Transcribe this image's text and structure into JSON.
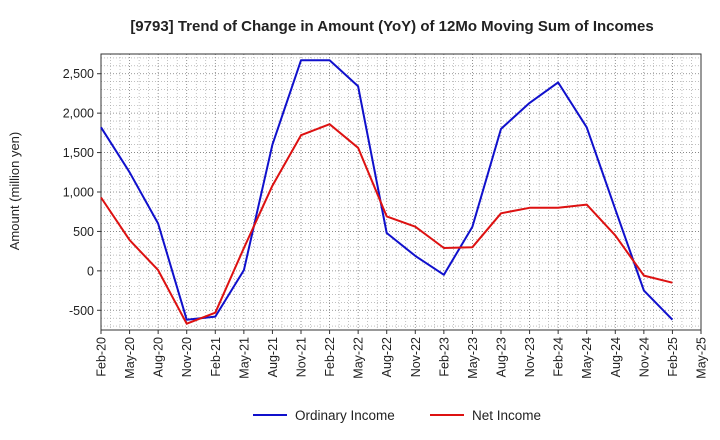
{
  "chart_data": {
    "type": "line",
    "title": "[9793]  Trend of Change in Amount (YoY) of 12Mo Moving Sum of Incomes",
    "ylabel": "Amount (million yen)",
    "xlabel": "",
    "ylim": [
      -750,
      2750
    ],
    "yticks": [
      -500,
      0,
      500,
      1000,
      1500,
      2000,
      2500
    ],
    "ytick_labels": [
      "-500",
      "0",
      "500",
      "1,000",
      "1,500",
      "2,000",
      "2,500"
    ],
    "categories": [
      "Feb-20",
      "May-20",
      "Aug-20",
      "Nov-20",
      "Feb-21",
      "May-21",
      "Aug-21",
      "Nov-21",
      "Feb-22",
      "May-22",
      "Aug-22",
      "Nov-22",
      "Feb-23",
      "May-23",
      "Aug-23",
      "Nov-23",
      "Feb-24",
      "May-24",
      "Aug-24",
      "Nov-24",
      "Feb-25",
      "May-25"
    ],
    "grid": true,
    "legend_position": "bottom",
    "series": [
      {
        "name": "Ordinary Income",
        "color": "#1010cc",
        "values": [
          1820,
          1250,
          600,
          -620,
          -580,
          10,
          1600,
          2670,
          2670,
          2340,
          480,
          190,
          -50,
          560,
          1800,
          2130,
          2390,
          1820,
          780,
          -250,
          -620,
          null
        ]
      },
      {
        "name": "Net Income",
        "color": "#dd1111",
        "values": [
          930,
          390,
          10,
          -670,
          -530,
          290,
          1080,
          1720,
          1860,
          1560,
          690,
          560,
          290,
          300,
          730,
          800,
          800,
          840,
          450,
          -60,
          -150,
          null
        ]
      }
    ]
  }
}
